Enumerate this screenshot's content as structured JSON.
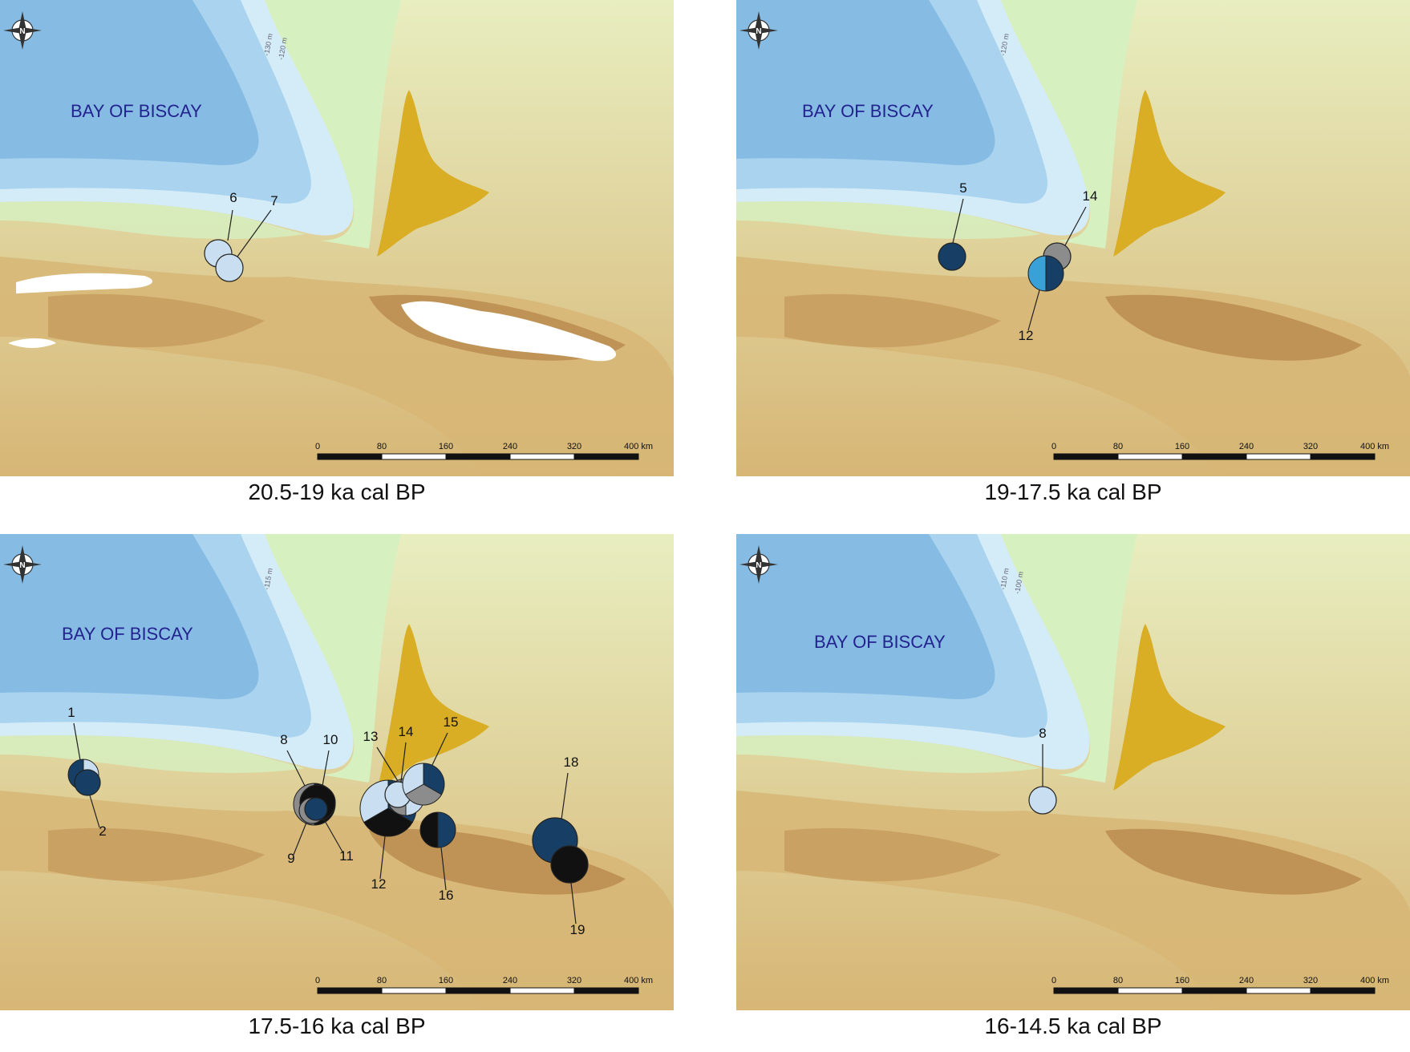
{
  "colors": {
    "deep_sea": "#86bce3",
    "mid_sea": "#a9d3ee",
    "shelf": "#d4ecf7",
    "exposed_shelf": "#d6f0c0",
    "lowland": "#e8eec0",
    "upland": "#d7b676",
    "mountain": "#b98a4c",
    "sand_field": "#d9ad24",
    "ice": "#ffffff",
    "site_dark_navy": "#173f66",
    "site_light_blue": "#c9def0",
    "site_grey": "#8c8c8c",
    "site_black": "#111111",
    "site_cyan": "#3aa0d8"
  },
  "sea_label": "BAY OF BISCAY",
  "scale_bar": {
    "ticks": [
      "0",
      "80",
      "160",
      "240",
      "320",
      "400 km"
    ]
  },
  "panels": [
    {
      "caption": "20.5-19 ka cal BP",
      "isobaths": [
        "-130 m",
        "-120 m"
      ],
      "sites": [
        {
          "label": "6",
          "colors": [
            "#c9def0"
          ]
        },
        {
          "label": "7",
          "colors": [
            "#c9def0"
          ]
        }
      ]
    },
    {
      "caption": "19-17.5 ka cal BP",
      "isobaths": [
        "-120 m"
      ],
      "sites": [
        {
          "label": "5",
          "colors": [
            "#173f66"
          ]
        },
        {
          "label": "14",
          "colors": [
            "#8c8c8c"
          ]
        },
        {
          "label": "12",
          "colors": [
            "#173f66",
            "#3aa0d8"
          ]
        }
      ]
    },
    {
      "caption": "17.5-16 ka cal BP",
      "isobaths": [
        "-115 m"
      ],
      "sites": [
        {
          "label": "1",
          "colors": [
            "#c9def0",
            "#173f66"
          ]
        },
        {
          "label": "2",
          "colors": [
            "#173f66"
          ]
        },
        {
          "label": "8",
          "colors": [
            "#111111",
            "#8c8c8c"
          ]
        },
        {
          "label": "10",
          "colors": [
            "#111111"
          ]
        },
        {
          "label": "9",
          "colors": [
            "#8c8c8c"
          ]
        },
        {
          "label": "11",
          "colors": [
            "#173f66"
          ]
        },
        {
          "label": "12",
          "colors": [
            "#173f66",
            "#111111",
            "#c9def0"
          ]
        },
        {
          "label": "13",
          "colors": [
            "#c9def0",
            "#8c8c8c"
          ]
        },
        {
          "label": "14",
          "colors": [
            "#c9def0"
          ]
        },
        {
          "label": "15",
          "colors": [
            "#173f66",
            "#8c8c8c",
            "#c9def0"
          ]
        },
        {
          "label": "16",
          "colors": [
            "#173f66",
            "#111111"
          ]
        },
        {
          "label": "18",
          "colors": [
            "#173f66"
          ]
        },
        {
          "label": "19",
          "colors": [
            "#111111"
          ]
        }
      ]
    },
    {
      "caption": "16-14.5 ka cal BP",
      "isobaths": [
        "-110 m",
        "-100 m"
      ],
      "sites": [
        {
          "label": "8",
          "colors": [
            "#c9def0"
          ]
        }
      ]
    }
  ]
}
